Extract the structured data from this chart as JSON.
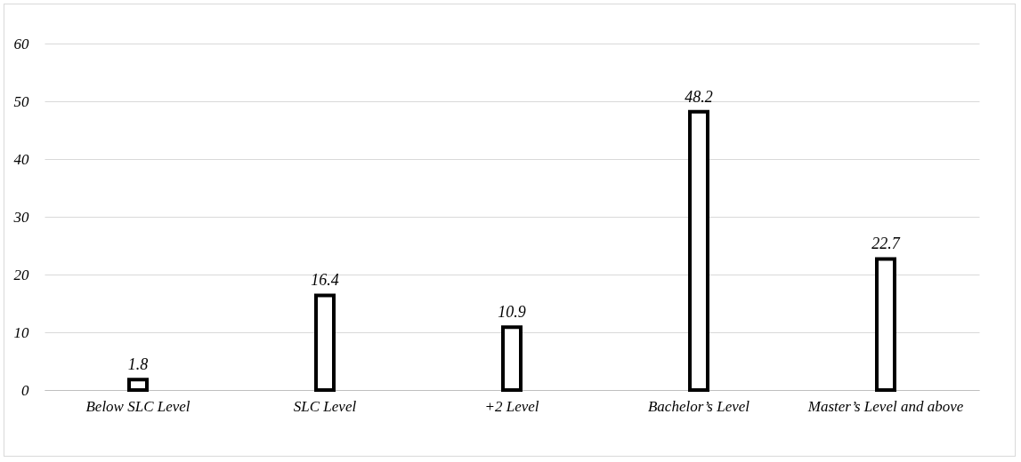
{
  "chart_data": {
    "type": "bar",
    "categories": [
      "Below SLC Level",
      "SLC Level",
      "+2 Level",
      "Bachelor’s Level",
      "Master’s Level and above"
    ],
    "values": [
      1.8,
      16.4,
      10.9,
      48.2,
      22.7
    ],
    "color": "#000000",
    "ylim": [
      0,
      60
    ],
    "yticks": [
      0,
      10,
      20,
      30,
      40,
      50,
      60
    ],
    "grid": "y",
    "data_labels": true
  }
}
